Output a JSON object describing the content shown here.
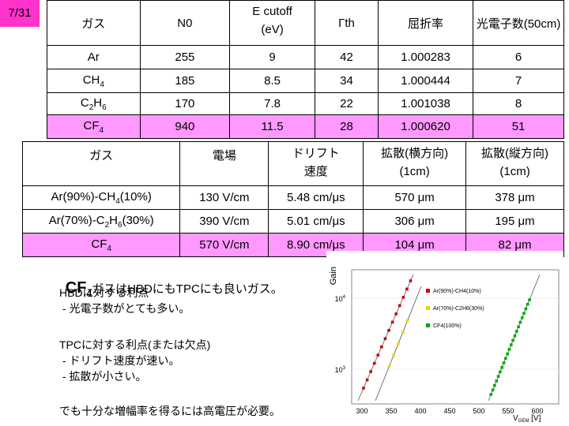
{
  "slide": {
    "page_number": "7/31"
  },
  "table1": {
    "headers": [
      "ガス",
      "N0",
      "E cutoff (eV)",
      "Γth",
      "屈折率",
      "光電子数(50cm)"
    ],
    "rows": [
      [
        "Ar",
        "255",
        "9",
        "42",
        "1.000283",
        "6"
      ],
      [
        "CH4",
        "185",
        "8.5",
        "34",
        "1.000444",
        "7"
      ],
      [
        "C2H6",
        "170",
        "7.8",
        "22",
        "1.001038",
        "8"
      ],
      [
        "CF4",
        "940",
        "11.5",
        "28",
        "1.000620",
        "51"
      ]
    ]
  },
  "table2": {
    "headers": [
      "ガス",
      "電場",
      "ドリフト速度",
      "拡散(横方向) (1cm)",
      "拡散(縦方向) (1cm)"
    ],
    "rows": [
      [
        "Ar(90%)-CH4(10%)",
        "130 V/cm",
        "5.48 cm/μs",
        "570 μm",
        "378 μm"
      ],
      [
        "Ar(70%)-C2H6(30%)",
        "390 V/cm",
        "5.01 cm/μs",
        "306 μm",
        "195 μm"
      ],
      [
        "CF4",
        "570 V/cm",
        "8.90 cm/μs",
        "104 μm",
        "82 μm"
      ]
    ]
  },
  "text": {
    "headline_cf": "CF4",
    "headline_rest": "ガスはHBDにもTPCにも良いガス。",
    "hbd_title": "HBDに対する利点",
    "hbd_point": " - 光電子数がとても多い。",
    "tpc_title": "TPCに対する利点(または欠点)",
    "tpc_point1": " - ドリフト速度が速い。",
    "tpc_point2": " - 拡散が小さい。",
    "footer": "でも十分な増幅率を得るには高電圧が必要。"
  },
  "chart_data": {
    "type": "scatter",
    "ylabel": "Gain",
    "xlabel": "VGEM [V]",
    "x_ticks": [
      "300",
      "350",
      "400",
      "450",
      "500",
      "550",
      "600"
    ],
    "y_ticks": [
      "10^4",
      "10^3"
    ],
    "log_y": true,
    "legend": [
      "Ar(90%)-CH4(10%)",
      "Ar(70%)-C2H6(30%)",
      "CF4(100%)"
    ],
    "series_colors": [
      "#cc0000",
      "#dddd00",
      "#00aa00"
    ]
  }
}
